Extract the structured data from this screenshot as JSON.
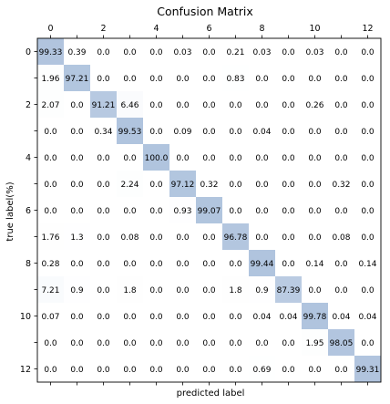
{
  "chart_data": {
    "type": "heatmap",
    "title": "Confusion Matrix",
    "xlabel": "predicted label",
    "ylabel": "true label(%)",
    "x_tick_labels": [
      "0",
      "2",
      "4",
      "6",
      "8",
      "10",
      "12"
    ],
    "y_tick_labels": [
      "0",
      "2",
      "4",
      "6",
      "8",
      "10",
      "12"
    ],
    "rows": 13,
    "cols": 13,
    "colormap": {
      "low": "#ffffff",
      "high": "#b0c4de"
    },
    "values": [
      [
        99.33,
        0.39,
        0.0,
        0.0,
        0.0,
        0.03,
        0.0,
        0.21,
        0.03,
        0.0,
        0.03,
        0.0,
        0.0
      ],
      [
        1.96,
        97.21,
        0.0,
        0.0,
        0.0,
        0.0,
        0.0,
        0.83,
        0.0,
        0.0,
        0.0,
        0.0,
        0.0
      ],
      [
        2.07,
        0.0,
        91.21,
        6.46,
        0.0,
        0.0,
        0.0,
        0.0,
        0.0,
        0.0,
        0.26,
        0.0,
        0.0
      ],
      [
        0.0,
        0.0,
        0.34,
        99.53,
        0.0,
        0.09,
        0.0,
        0.0,
        0.04,
        0.0,
        0.0,
        0.0,
        0.0
      ],
      [
        0.0,
        0.0,
        0.0,
        0.0,
        100.0,
        0.0,
        0.0,
        0.0,
        0.0,
        0.0,
        0.0,
        0.0,
        0.0
      ],
      [
        0.0,
        0.0,
        0.0,
        2.24,
        0.0,
        97.12,
        0.32,
        0.0,
        0.0,
        0.0,
        0.0,
        0.32,
        0.0
      ],
      [
        0.0,
        0.0,
        0.0,
        0.0,
        0.0,
        0.93,
        99.07,
        0.0,
        0.0,
        0.0,
        0.0,
        0.0,
        0.0
      ],
      [
        1.76,
        1.3,
        0.0,
        0.08,
        0.0,
        0.0,
        0.0,
        96.78,
        0.0,
        0.0,
        0.0,
        0.08,
        0.0
      ],
      [
        0.28,
        0.0,
        0.0,
        0.0,
        0.0,
        0.0,
        0.0,
        0.0,
        99.44,
        0.0,
        0.14,
        0.0,
        0.14
      ],
      [
        7.21,
        0.9,
        0.0,
        1.8,
        0.0,
        0.0,
        0.0,
        1.8,
        0.9,
        87.39,
        0.0,
        0.0,
        0.0
      ],
      [
        0.07,
        0.0,
        0.0,
        0.0,
        0.0,
        0.0,
        0.0,
        0.0,
        0.04,
        0.04,
        99.78,
        0.04,
        0.04
      ],
      [
        0.0,
        0.0,
        0.0,
        0.0,
        0.0,
        0.0,
        0.0,
        0.0,
        0.0,
        0.0,
        1.95,
        98.05,
        0.0
      ],
      [
        0.0,
        0.0,
        0.0,
        0.0,
        0.0,
        0.0,
        0.0,
        0.0,
        0.69,
        0.0,
        0.0,
        0.0,
        99.31
      ]
    ]
  }
}
